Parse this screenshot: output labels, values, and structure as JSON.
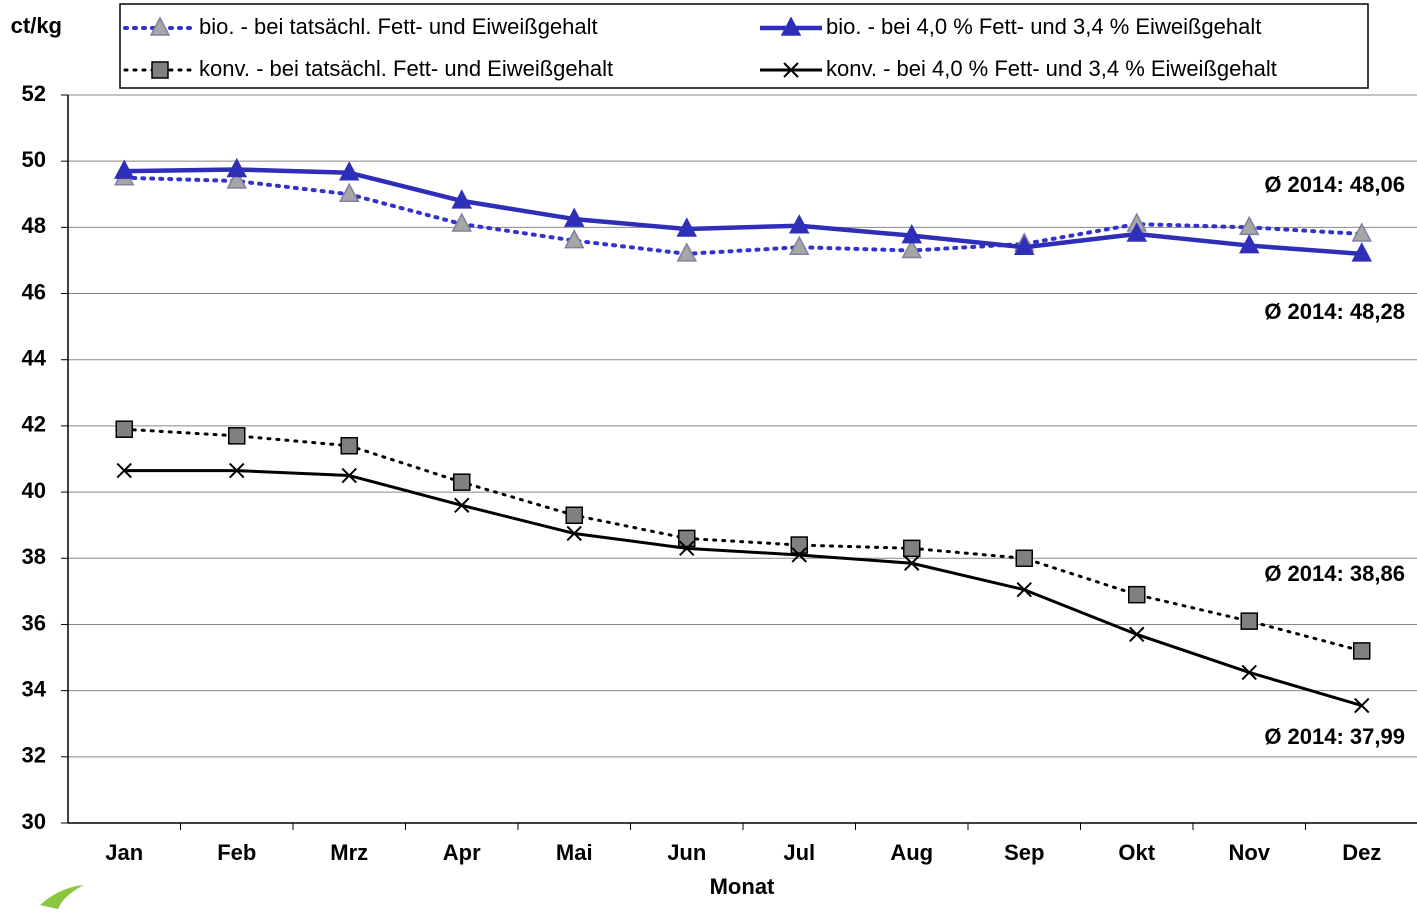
{
  "chart_data": {
    "type": "line",
    "y_axis_label": "ct/kg",
    "x_axis_label": "Monat",
    "categories": [
      "Jan",
      "Feb",
      "Mrz",
      "Apr",
      "Mai",
      "Jun",
      "Jul",
      "Aug",
      "Sep",
      "Okt",
      "Nov",
      "Dez"
    ],
    "series": [
      {
        "name": "bio. - bei tatsächl. Fett- und Eiweißgehalt",
        "color": "#3333cc",
        "values": [
          49.5,
          49.4,
          49.0,
          48.1,
          47.6,
          47.2,
          47.4,
          47.3,
          47.5,
          48.1,
          48.0,
          47.8
        ]
      },
      {
        "name": "bio. - bei 4,0 % Fett- und 3,4 % Eiweißgehalt",
        "color": "#2e2eb8",
        "values": [
          49.7,
          49.75,
          49.65,
          48.8,
          48.25,
          47.95,
          48.05,
          47.75,
          47.4,
          47.8,
          47.45,
          47.2
        ]
      },
      {
        "name": "konv. - bei tatsächl. Fett- und Eiweißgehalt",
        "color": "#000000",
        "values": [
          41.9,
          41.7,
          41.4,
          40.3,
          39.3,
          38.6,
          38.4,
          38.3,
          38.0,
          36.9,
          36.1,
          35.2
        ]
      },
      {
        "name": "konv. - bei 4,0 % Fett- und 3,4 % Eiweißgehalt",
        "color": "#000000",
        "values": [
          40.65,
          40.65,
          40.5,
          39.6,
          38.75,
          38.3,
          38.1,
          37.85,
          37.05,
          35.7,
          34.55,
          33.55
        ]
      }
    ],
    "annotations": [
      "Ø 2014: 48,06",
      "Ø 2014: 48,28",
      "Ø 2014: 38,86",
      "Ø 2014: 37,99"
    ],
    "ylim": [
      30,
      52
    ],
    "yticks": [
      30,
      32,
      34,
      36,
      38,
      40,
      42,
      44,
      46,
      48,
      50,
      52
    ],
    "grid": true
  }
}
